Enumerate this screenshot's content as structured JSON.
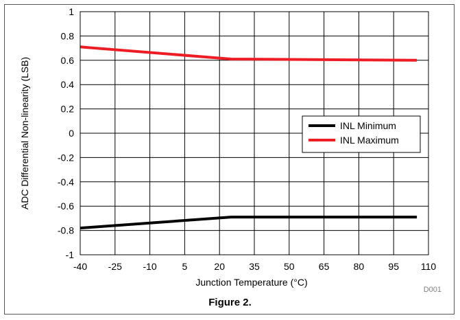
{
  "caption": "Figure 2.",
  "code_label": "D001",
  "colors": {
    "min_series": "#000000",
    "max_series": "#ee1c24",
    "grid": "#000000"
  },
  "chart_data": {
    "type": "line",
    "xlabel": "Junction Temperature (°C)",
    "ylabel": "ADC Differential Non-linearity (LSB)",
    "xlim": [
      -40,
      110
    ],
    "ylim": [
      -1,
      1
    ],
    "x_ticks": [
      -40,
      -25,
      -10,
      5,
      20,
      35,
      50,
      65,
      80,
      95,
      110
    ],
    "y_ticks": [
      -1,
      -0.8,
      -0.6,
      -0.4,
      -0.2,
      0,
      0.2,
      0.4,
      0.6,
      0.8,
      1
    ],
    "grid": true,
    "legend_position": "right",
    "series": [
      {
        "name": "INL Minimum",
        "color": "#000000",
        "x": [
          -40,
          25,
          105
        ],
        "y": [
          -0.78,
          -0.69,
          -0.69
        ]
      },
      {
        "name": "INL Maximum",
        "color": "#ee1c24",
        "x": [
          -40,
          25,
          105
        ],
        "y": [
          0.71,
          0.61,
          0.6
        ]
      }
    ]
  }
}
